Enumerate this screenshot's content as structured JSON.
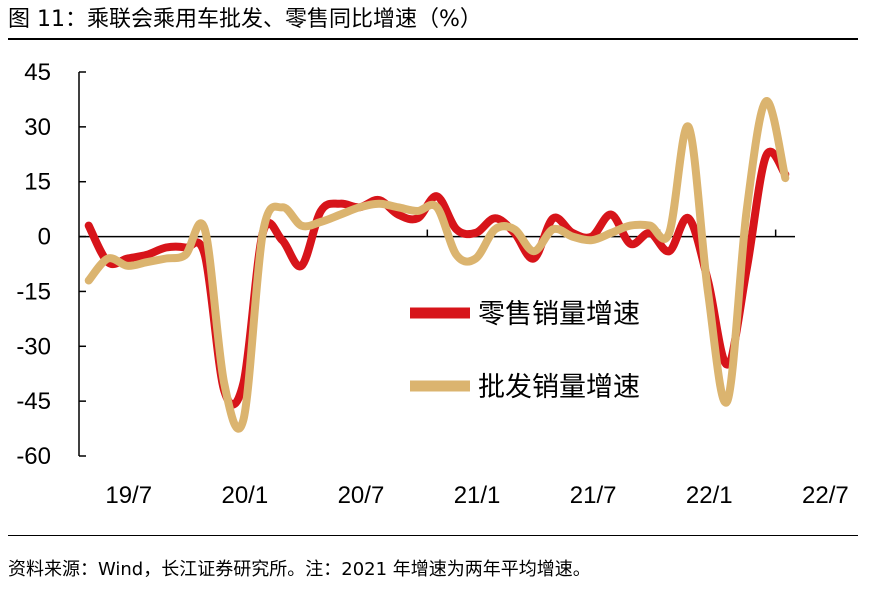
{
  "header": {
    "title": "图 11：乘联会乘用车批发、零售同比增速（%）"
  },
  "footer": {
    "source": "资料来源：Wind，长江证券研究所。注：2021 年增速为两年平均增速。"
  },
  "colors": {
    "retail": "#d7141a",
    "wholesale": "#dbb46f",
    "axis": "#000000"
  },
  "chart_data": {
    "type": "line",
    "title": "图 11：乘联会乘用车批发、零售同比增速（%）",
    "xlabel": "",
    "ylabel": "",
    "ylim": [
      -60,
      45
    ],
    "yticks": [
      45,
      30,
      15,
      0,
      -15,
      -30,
      -45,
      -60
    ],
    "xtick_labels": [
      "19/7",
      "20/1",
      "20/7",
      "21/1",
      "21/7",
      "22/1",
      "22/7"
    ],
    "x": [
      "19/7",
      "19/8",
      "19/9",
      "19/10",
      "19/11",
      "19/12",
      "20/1",
      "20/2",
      "20/3",
      "20/4",
      "20/5",
      "20/6",
      "20/7",
      "20/8",
      "20/9",
      "20/10",
      "20/11",
      "20/12",
      "21/1",
      "21/2",
      "21/3",
      "21/4",
      "21/5",
      "21/6",
      "21/7",
      "21/8",
      "21/9",
      "21/10",
      "21/11",
      "21/12",
      "22/1",
      "22/2",
      "22/3",
      "22/4",
      "22/5",
      "22/6",
      "22/7"
    ],
    "grid": false,
    "legend_position": "center-right",
    "series": [
      {
        "name": "零售销量增速",
        "values": [
          3,
          -7,
          -6,
          -5,
          -3,
          -3,
          -5,
          -42,
          -40,
          1,
          -1,
          -8,
          7,
          9,
          8,
          10,
          6,
          5,
          11,
          2,
          1,
          5,
          1,
          -6,
          5,
          1,
          0,
          6,
          -2,
          1,
          -4,
          5,
          -12,
          -35,
          -9,
          22,
          17
        ]
      },
      {
        "name": "批发销量增速",
        "values": [
          -12,
          -6,
          -8,
          -7,
          -6,
          -5,
          2,
          -40,
          -50,
          1,
          8,
          3,
          4,
          6,
          8,
          9,
          8,
          7,
          8,
          -5,
          -6,
          2,
          2,
          -4,
          2,
          0,
          -1,
          1,
          3,
          3,
          1,
          30,
          -15,
          -45,
          7,
          37,
          16
        ]
      }
    ]
  }
}
